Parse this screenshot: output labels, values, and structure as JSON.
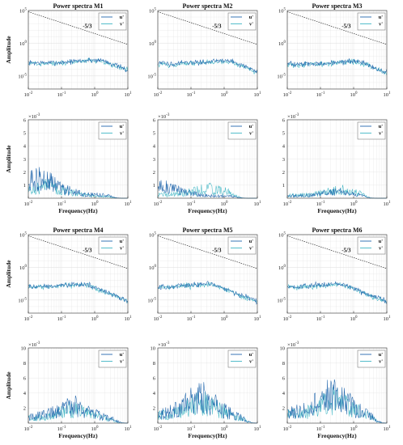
{
  "figure": {
    "background": "#ffffff"
  },
  "colors": {
    "u_series": "#2166ac",
    "v_series": "#41b6c4",
    "grid": "#e3e3e3",
    "axis": "#333333",
    "slope_line": "#333333"
  },
  "chart_data": [
    {
      "id": "log-M1",
      "type": "line",
      "title": "Power spectra M1",
      "xlabel": "",
      "ylabel": "Amplitude",
      "xscale": "log",
      "yscale": "log",
      "xlim": [
        0.01,
        10
      ],
      "ylim": [
        1e-07,
        100000
      ],
      "xticks": [
        "10^-2",
        "10^-1",
        "10^0",
        "10^1"
      ],
      "yticks": [
        "10^5",
        "10^0",
        "10^-5"
      ],
      "grid": true,
      "legend": "top-right",
      "series": [
        {
          "name": "u'",
          "plateau": 0.001,
          "corner": 1.8
        },
        {
          "name": "v'",
          "plateau": 0.0008,
          "corner": 1.8
        }
      ],
      "annotation": {
        "text": "-5/3",
        "slope": -1.6667
      }
    },
    {
      "id": "log-M2",
      "type": "line",
      "title": "Power spectra M2",
      "xlabel": "",
      "ylabel": "",
      "xscale": "log",
      "yscale": "log",
      "xlim": [
        0.01,
        10
      ],
      "ylim": [
        1e-07,
        100000
      ],
      "xticks": [
        "10^-2",
        "10^-1",
        "10^0",
        "10^1"
      ],
      "yticks": [
        "10^5",
        "10^0",
        "10^-5"
      ],
      "grid": true,
      "legend": "top-right",
      "series": [
        {
          "name": "u'",
          "plateau": 0.0008,
          "corner": 1.6
        },
        {
          "name": "v'",
          "plateau": 0.0006,
          "corner": 1.6
        }
      ],
      "annotation": {
        "text": "-5/3",
        "slope": -1.6667
      }
    },
    {
      "id": "log-M3",
      "type": "line",
      "title": "Power spectra M3",
      "xlabel": "",
      "ylabel": "",
      "xscale": "log",
      "yscale": "log",
      "xlim": [
        0.01,
        10
      ],
      "ylim": [
        1e-07,
        100000
      ],
      "xticks": [
        "10^-2",
        "10^-1",
        "10^0",
        "10^1"
      ],
      "yticks": [
        "10^5",
        "10^0",
        "10^-5"
      ],
      "grid": true,
      "legend": "top-right",
      "series": [
        {
          "name": "u'",
          "plateau": 0.0006,
          "corner": 1.5
        },
        {
          "name": "v'",
          "plateau": 0.0005,
          "corner": 1.5
        }
      ],
      "annotation": {
        "text": "-5/3",
        "slope": -1.6667
      }
    },
    {
      "id": "lin-M1",
      "type": "line",
      "title": "",
      "xlabel": "Frequency(Hz)",
      "ylabel": "Amplitude",
      "xscale": "log",
      "yscale": "linear",
      "xlim": [
        0.01,
        10
      ],
      "ylim": [
        0,
        0.006
      ],
      "exponent": "×10^-3",
      "xticks": [
        "10^-2",
        "10^-1",
        "10^0",
        "10^1"
      ],
      "yticks": [
        "6",
        "5",
        "4",
        "3",
        "2",
        "1"
      ],
      "grid": true,
      "legend": "top-right",
      "series": [
        {
          "name": "u'",
          "level": 0.001,
          "peak_x": 0.03,
          "cutoff": 2
        },
        {
          "name": "v'",
          "level": 0.0006,
          "peak_x": 0.05,
          "cutoff": 2
        }
      ]
    },
    {
      "id": "lin-M2",
      "type": "line",
      "title": "",
      "xlabel": "Frequency(Hz)",
      "ylabel": "",
      "xscale": "log",
      "yscale": "linear",
      "xlim": [
        0.01,
        10
      ],
      "ylim": [
        0,
        0.006
      ],
      "exponent": "×10^-3",
      "xticks": [
        "10^-2",
        "10^-1",
        "10^0",
        "10^1"
      ],
      "yticks": [
        "6",
        "5",
        "4",
        "3",
        "2",
        "1"
      ],
      "grid": true,
      "legend": "top-right",
      "series": [
        {
          "name": "u'",
          "level": 0.0006,
          "peak_x": 0.02,
          "cutoff": 1.5
        },
        {
          "name": "v'",
          "level": 0.0005,
          "peak_x": 0.5,
          "cutoff": 1.5
        }
      ]
    },
    {
      "id": "lin-M3",
      "type": "line",
      "title": "",
      "xlabel": "Frequency(Hz)",
      "ylabel": "",
      "xscale": "log",
      "yscale": "linear",
      "xlim": [
        0.01,
        10
      ],
      "ylim": [
        0,
        0.006
      ],
      "exponent": "×10^-3",
      "xticks": [
        "10^-2",
        "10^-1",
        "10^0",
        "10^1"
      ],
      "yticks": [
        "6",
        "5",
        "4",
        "3",
        "2",
        "1"
      ],
      "grid": true,
      "legend": "top-right",
      "series": [
        {
          "name": "u'",
          "level": 0.0003,
          "peak_x": 0.4,
          "cutoff": 1.5
        },
        {
          "name": "v'",
          "level": 0.0004,
          "peak_x": 0.5,
          "cutoff": 1.5
        }
      ]
    },
    {
      "id": "log-M4",
      "type": "line",
      "title": "Power spectra M4",
      "xlabel": "",
      "ylabel": "Amplitude",
      "xscale": "log",
      "yscale": "log",
      "xlim": [
        0.01,
        10
      ],
      "ylim": [
        1e-07,
        100000
      ],
      "xticks": [
        "10^-2",
        "10^-1",
        "10^0",
        "10^1"
      ],
      "yticks": [
        "10^5",
        "10^0",
        "10^-5"
      ],
      "grid": true,
      "legend": "top-right",
      "series": [
        {
          "name": "u'",
          "plateau": 0.001,
          "corner": 0.6
        },
        {
          "name": "v'",
          "plateau": 0.0008,
          "corner": 0.6
        }
      ],
      "annotation": {
        "text": "-5/3",
        "slope": -1.6667
      }
    },
    {
      "id": "log-M5",
      "type": "line",
      "title": "Power spectra M5",
      "xlabel": "",
      "ylabel": "",
      "xscale": "log",
      "yscale": "log",
      "xlim": [
        0.01,
        10
      ],
      "ylim": [
        1e-07,
        100000
      ],
      "xticks": [
        "10^-2",
        "10^-1",
        "10^0",
        "10^1"
      ],
      "yticks": [
        "10^5",
        "10^0",
        "10^-5"
      ],
      "grid": true,
      "legend": "top-right",
      "series": [
        {
          "name": "u'",
          "plateau": 0.001,
          "corner": 0.5
        },
        {
          "name": "v'",
          "plateau": 0.0008,
          "corner": 0.5
        }
      ],
      "annotation": {
        "text": "-5/3",
        "slope": -1.6667
      }
    },
    {
      "id": "log-M6",
      "type": "line",
      "title": "Power spectra M6",
      "xlabel": "",
      "ylabel": "",
      "xscale": "log",
      "yscale": "log",
      "xlim": [
        0.01,
        10
      ],
      "ylim": [
        1e-07,
        100000
      ],
      "xticks": [
        "10^-2",
        "10^-1",
        "10^0",
        "10^1"
      ],
      "yticks": [
        "10^5",
        "10^0",
        "10^-5"
      ],
      "grid": true,
      "legend": "top-right",
      "series": [
        {
          "name": "u'",
          "plateau": 0.001,
          "corner": 0.5
        },
        {
          "name": "v'",
          "plateau": 0.0008,
          "corner": 0.5
        }
      ],
      "annotation": {
        "text": "-5/3",
        "slope": -1.6667
      }
    },
    {
      "id": "lin-M4",
      "type": "line",
      "title": "",
      "xlabel": "Frequency(Hz)",
      "ylabel": "Amplitude",
      "xscale": "log",
      "yscale": "linear",
      "xlim": [
        0.01,
        10
      ],
      "ylim": [
        0,
        0.01
      ],
      "exponent": "×10^-3",
      "xticks": [
        "10^-2",
        "10^-1",
        "10^0",
        "10^1"
      ],
      "yticks": [
        "10",
        "8",
        "6",
        "4",
        "2"
      ],
      "grid": true,
      "legend": "top-right",
      "series": [
        {
          "name": "u'",
          "level": 0.0015,
          "peak_x": 0.3,
          "cutoff": 3
        },
        {
          "name": "v'",
          "level": 0.0012,
          "peak_x": 0.3,
          "cutoff": 3
        }
      ]
    },
    {
      "id": "lin-M5",
      "type": "line",
      "title": "",
      "xlabel": "Frequency(Hz)",
      "ylabel": "",
      "xscale": "log",
      "yscale": "linear",
      "xlim": [
        0.01,
        10
      ],
      "ylim": [
        0,
        0.01
      ],
      "exponent": "×10^-3",
      "xticks": [
        "10^-2",
        "10^-1",
        "10^0",
        "10^1"
      ],
      "yticks": [
        "10",
        "8",
        "6",
        "4",
        "2"
      ],
      "grid": true,
      "legend": "top-right",
      "series": [
        {
          "name": "u'",
          "level": 0.0022,
          "peak_x": 0.25,
          "cutoff": 3
        },
        {
          "name": "v'",
          "level": 0.0018,
          "peak_x": 0.3,
          "cutoff": 3
        }
      ]
    },
    {
      "id": "lin-M6",
      "type": "line",
      "title": "",
      "xlabel": "Frequency(Hz)",
      "ylabel": "",
      "xscale": "log",
      "yscale": "linear",
      "xlim": [
        0.01,
        10
      ],
      "ylim": [
        0,
        0.01
      ],
      "exponent": "×10^-3",
      "xticks": [
        "10^-2",
        "10^-1",
        "10^0",
        "10^1"
      ],
      "yticks": [
        "10",
        "8",
        "6",
        "4",
        "2"
      ],
      "grid": true,
      "legend": "top-right",
      "series": [
        {
          "name": "u'",
          "level": 0.0025,
          "peak_x": 0.3,
          "cutoff": 3
        },
        {
          "name": "v'",
          "level": 0.002,
          "peak_x": 0.35,
          "cutoff": 3
        }
      ]
    }
  ]
}
